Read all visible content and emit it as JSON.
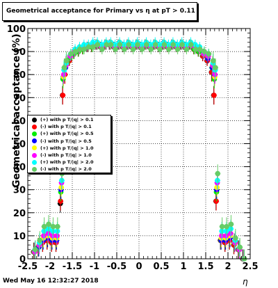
{
  "title": "Geometrical acceptance for Primary vs   η at pT > 0.11",
  "footer": "Wed May 16 12:32:27 2018",
  "chart_data": {
    "type": "scatter",
    "title": "Geometrical acceptance for Primary vs   η at pT > 0.11",
    "xlabel": "η",
    "ylabel": "Geometrical acceptance (%)",
    "xlim": [
      -2.5,
      2.5
    ],
    "ylim": [
      0,
      100
    ],
    "xticks": [
      "-2.5",
      "-2",
      "-1.5",
      "-1",
      "-0.5",
      "0",
      "0.5",
      "1",
      "1.5",
      "2",
      "2.5"
    ],
    "yticks": [
      "0",
      "10",
      "20",
      "30",
      "40",
      "50",
      "60",
      "70",
      "80",
      "90",
      "100"
    ],
    "grid": true,
    "legend_position": "middle-left",
    "x": [
      -2.35,
      -2.25,
      -2.15,
      -2.05,
      -1.95,
      -1.85,
      -1.75,
      -1.7,
      -1.65,
      -1.55,
      -1.45,
      -1.35,
      -1.25,
      -1.15,
      -1.05,
      -0.95,
      -0.85,
      -0.75,
      -0.65,
      -0.55,
      -0.45,
      -0.35,
      -0.25,
      -0.15,
      -0.05,
      0.05,
      0.15,
      0.25,
      0.35,
      0.45,
      0.55,
      0.65,
      0.75,
      0.85,
      0.95,
      1.05,
      1.15,
      1.25,
      1.35,
      1.45,
      1.55,
      1.65,
      1.7,
      1.75,
      1.85,
      1.95,
      2.05,
      2.15,
      2.25,
      2.35
    ],
    "series": [
      {
        "name": "(+) with p T/|q| > 0.1",
        "color": "#000000",
        "values": [
          3,
          5,
          7,
          8,
          7,
          7,
          24,
          71,
          80,
          86,
          89,
          90,
          91,
          92,
          92,
          93,
          92,
          93,
          93,
          92,
          93,
          92,
          93,
          92,
          93,
          92,
          93,
          92,
          93,
          92,
          93,
          92,
          93,
          92,
          93,
          92,
          93,
          91,
          90,
          88,
          86,
          81,
          71,
          25,
          8,
          7,
          8,
          6,
          4,
          0
        ]
      },
      {
        "name": "(-) with p T/|q| > 0.1",
        "color": "#ff0000",
        "values": [
          3,
          5,
          7,
          8,
          7,
          7,
          25,
          71,
          80,
          86,
          89,
          90,
          91,
          92,
          92,
          93,
          92,
          93,
          93,
          92,
          93,
          92,
          93,
          92,
          93,
          92,
          93,
          92,
          93,
          92,
          93,
          92,
          93,
          92,
          93,
          92,
          93,
          91,
          90,
          88,
          86,
          81,
          71,
          25,
          8,
          7,
          8,
          6,
          4,
          0
        ]
      },
      {
        "name": "(+) with p T/|q| > 0.5",
        "color": "#00ee00",
        "values": [
          3,
          5,
          8,
          9,
          8,
          8,
          29,
          78,
          83,
          87,
          89,
          90,
          91,
          92,
          92,
          93,
          92,
          93,
          93,
          92,
          93,
          92,
          93,
          92,
          93,
          92,
          93,
          92,
          93,
          92,
          93,
          92,
          93,
          92,
          93,
          92,
          93,
          91,
          90,
          89,
          87,
          83,
          78,
          29,
          8,
          8,
          9,
          7,
          4,
          0
        ]
      },
      {
        "name": "(-) with p T/|q| > 0.5",
        "color": "#0000ff",
        "values": [
          3,
          5,
          8,
          9,
          8,
          8,
          30,
          79,
          83,
          88,
          90,
          91,
          92,
          92,
          93,
          93,
          92,
          93,
          93,
          92,
          93,
          92,
          93,
          92,
          93,
          92,
          93,
          92,
          93,
          92,
          93,
          92,
          93,
          92,
          93,
          92,
          93,
          92,
          91,
          89,
          87,
          83,
          79,
          30,
          8,
          8,
          9,
          7,
          4,
          0
        ]
      },
      {
        "name": "(+) with p T/|q| > 1.0",
        "color": "#ffff00",
        "values": [
          3,
          6,
          9,
          10,
          9,
          9,
          31,
          79,
          84,
          88,
          90,
          91,
          92,
          92,
          93,
          93,
          92,
          93,
          93,
          92,
          93,
          92,
          93,
          92,
          93,
          92,
          93,
          92,
          93,
          92,
          93,
          92,
          93,
          92,
          93,
          92,
          93,
          92,
          91,
          89,
          88,
          84,
          79,
          31,
          9,
          9,
          10,
          7,
          4,
          0
        ]
      },
      {
        "name": "(-) with p T/|q| > 1.0",
        "color": "#ff00ff",
        "values": [
          3,
          6,
          10,
          11,
          10,
          10,
          33,
          80,
          84,
          88,
          90,
          91,
          92,
          92,
          93,
          93,
          92,
          93,
          93,
          92,
          93,
          92,
          93,
          92,
          93,
          92,
          93,
          92,
          93,
          92,
          93,
          92,
          93,
          92,
          93,
          92,
          93,
          92,
          91,
          89,
          88,
          84,
          80,
          33,
          10,
          10,
          11,
          7,
          4,
          0
        ]
      },
      {
        "name": "(+) with p T/|q| > 2.0",
        "color": "#00ffff",
        "values": [
          4,
          7,
          12,
          13,
          12,
          12,
          34,
          82,
          85,
          89,
          91,
          92,
          93,
          93,
          94,
          94,
          93,
          94,
          94,
          93,
          94,
          93,
          94,
          93,
          94,
          93,
          94,
          93,
          94,
          93,
          94,
          93,
          94,
          93,
          94,
          93,
          94,
          93,
          92,
          90,
          89,
          85,
          82,
          34,
          12,
          12,
          13,
          8,
          5,
          0
        ]
      },
      {
        "name": "(-) with p T/|q| > 2.0",
        "color": "#66cc66",
        "values": [
          4,
          8,
          14,
          15,
          14,
          14,
          37,
          83,
          86,
          89,
          90,
          91,
          91,
          92,
          92,
          93,
          91,
          93,
          93,
          91,
          93,
          91,
          93,
          91,
          93,
          91,
          93,
          91,
          93,
          91,
          93,
          91,
          93,
          91,
          93,
          91,
          93,
          91,
          91,
          90,
          89,
          86,
          83,
          37,
          14,
          14,
          15,
          9,
          5,
          0
        ]
      }
    ]
  }
}
